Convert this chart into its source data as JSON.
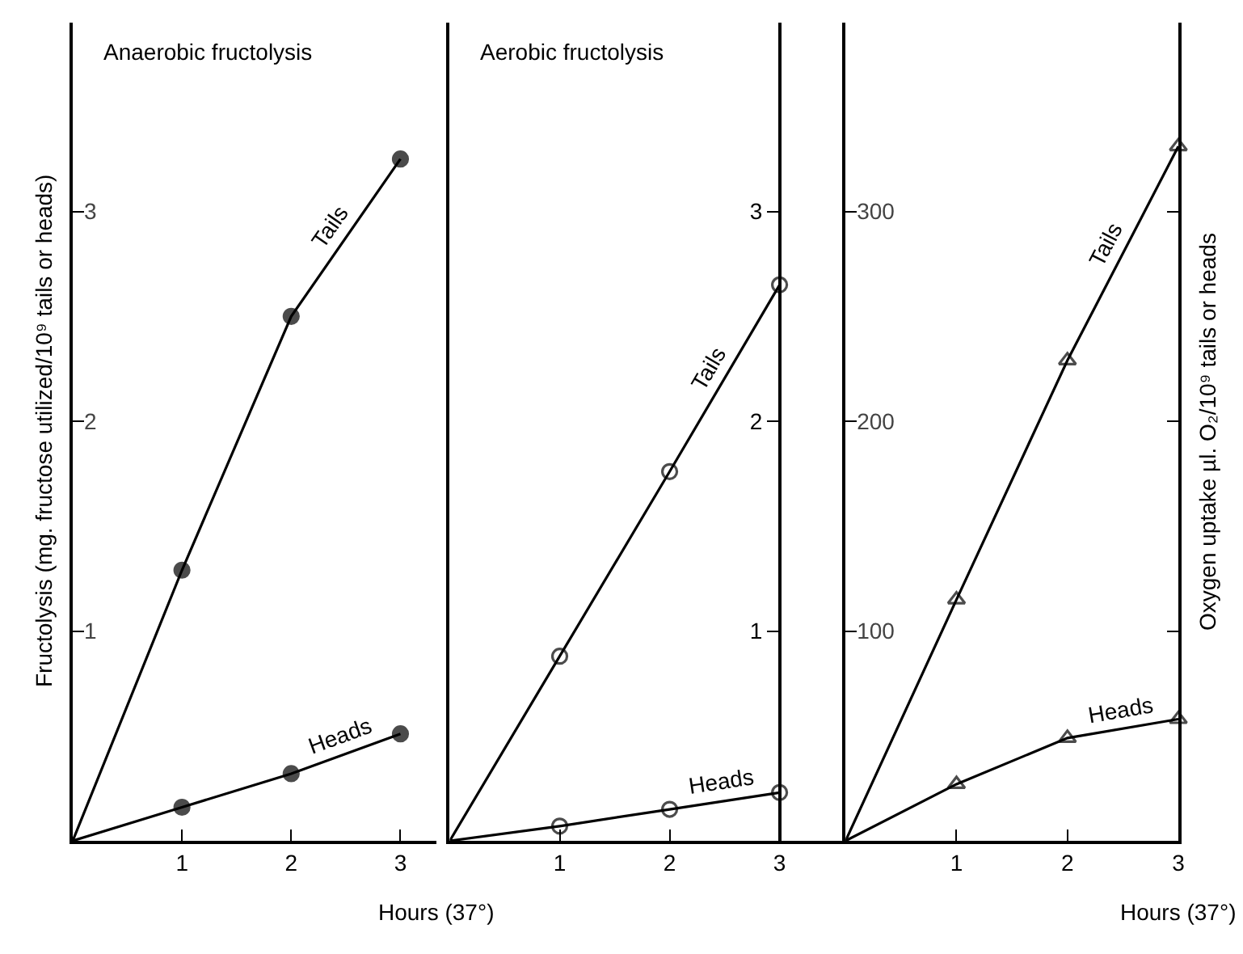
{
  "chart_data": [
    {
      "type": "line",
      "title": "Anaerobic fructolysis",
      "xlabel": "Hours (37°)",
      "ylabel": "Fructolysis (mg. fructose utilized/10⁹ tails or heads)",
      "x": [
        0,
        1,
        2,
        3
      ],
      "xlim": [
        0,
        3.33
      ],
      "xticks": [
        1,
        2,
        3
      ],
      "ylim": [
        0,
        3.9
      ],
      "yticks": [
        1,
        2,
        3
      ],
      "legend": false,
      "series": [
        {
          "name": "Tails",
          "color": "#000000",
          "values": [
            0,
            1.29,
            2.5,
            3.25
          ],
          "marker": [
            "none",
            "circle",
            "circle",
            "circle"
          ]
        },
        {
          "name": "Heads",
          "color": "#000000",
          "values": [
            0,
            0.16,
            0.32,
            0.51
          ],
          "marker": [
            "none",
            "circle",
            "circle",
            "circle"
          ]
        }
      ]
    },
    {
      "type": "line",
      "title": "Aerobic fructolysis",
      "x": [
        0,
        1,
        2,
        3
      ],
      "xlim": [
        0,
        3.6
      ],
      "xticks": [
        1,
        2,
        3
      ],
      "y2lim": [
        0,
        3.9
      ],
      "y2ticks": [
        1,
        2,
        3
      ],
      "legend": false,
      "series": [
        {
          "name": "Tails",
          "color": "#000000",
          "axis": "y2",
          "values": [
            0,
            0.88,
            1.76,
            2.65
          ],
          "marker": [
            "none",
            "circle-open",
            "circle-open",
            "circle-open"
          ]
        },
        {
          "name": "Heads",
          "color": "#000000",
          "axis": "y2",
          "values": [
            0,
            0.07,
            0.15,
            0.23
          ],
          "marker": [
            "none",
            "circle-open",
            "circle-open",
            "circle-open"
          ]
        }
      ]
    },
    {
      "type": "line",
      "xlabel": "Hours (37°)",
      "y2label": "Oxygen uptake µl. O₂/10⁹ tails or heads",
      "x": [
        0,
        1,
        2,
        3
      ],
      "xlim": [
        0,
        3.0
      ],
      "xticks": [
        1,
        2,
        3
      ],
      "ylim": [
        0,
        390
      ],
      "yticks": [
        100,
        200,
        300
      ],
      "legend": false,
      "series": [
        {
          "name": "Tails",
          "color": "#000000",
          "values": [
            0,
            115,
            229,
            331
          ],
          "marker": [
            "none",
            "triangle-up-open",
            "triangle-up-open",
            "triangle-up-open"
          ]
        },
        {
          "name": "Heads",
          "color": "#000000",
          "values": [
            0,
            27,
            49,
            58
          ],
          "marker": [
            "none",
            "triangle-up-open",
            "triangle-up-open",
            "triangle-up-open"
          ]
        }
      ]
    }
  ]
}
